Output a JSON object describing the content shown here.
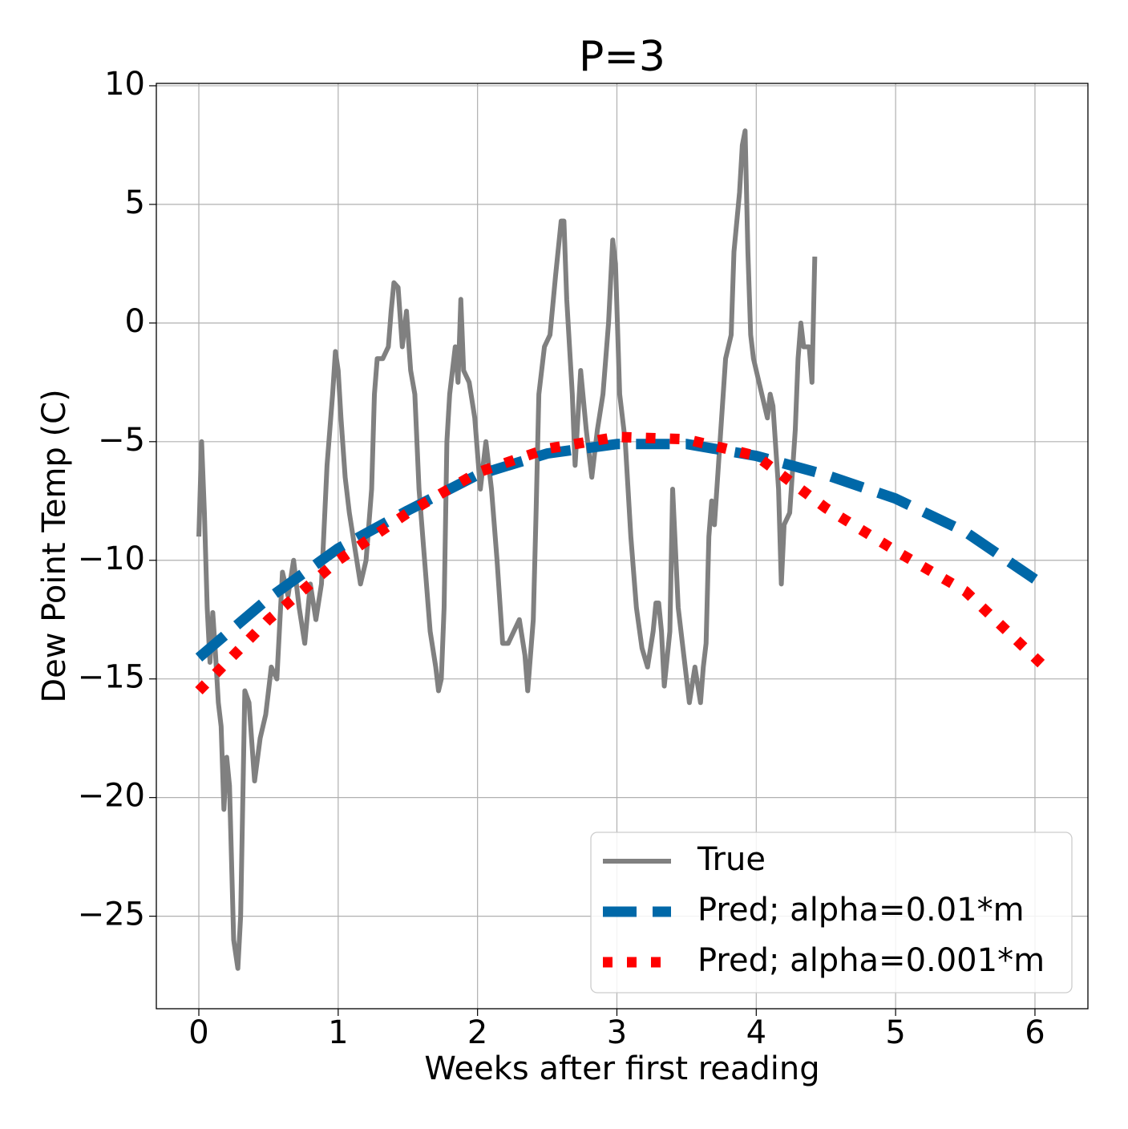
{
  "chart_data": {
    "type": "line",
    "title": "P=3",
    "xlabel": "Weeks after first reading",
    "ylabel": "Dew Point Temp (C)",
    "xlim": [
      -0.305,
      6.38
    ],
    "ylim": [
      -28.9,
      10.1
    ],
    "xticks": [
      0,
      1,
      2,
      3,
      4,
      5,
      6
    ],
    "yticks": [
      {
        "value": -25,
        "label": "−25"
      },
      {
        "value": -20,
        "label": "−20"
      },
      {
        "value": -15,
        "label": "−15"
      },
      {
        "value": -10,
        "label": "−10"
      },
      {
        "value": -5,
        "label": "−5"
      },
      0,
      5,
      10
    ],
    "grid": true,
    "legend": "lower right",
    "series": [
      {
        "name": "True",
        "color": "#808080",
        "linestyle": "solid",
        "x": [
          0,
          0.02,
          0.04,
          0.06,
          0.08,
          0.1,
          0.12,
          0.14,
          0.16,
          0.18,
          0.2,
          0.22,
          0.25,
          0.28,
          0.3,
          0.33,
          0.36,
          0.4,
          0.44,
          0.48,
          0.52,
          0.56,
          0.6,
          0.64,
          0.68,
          0.72,
          0.76,
          0.8,
          0.84,
          0.88,
          0.92,
          0.96,
          0.98,
          1.0,
          1.02,
          1.05,
          1.08,
          1.12,
          1.16,
          1.2,
          1.24,
          1.26,
          1.28,
          1.32,
          1.36,
          1.38,
          1.4,
          1.43,
          1.46,
          1.49,
          1.52,
          1.55,
          1.58,
          1.62,
          1.66,
          1.7,
          1.72,
          1.74,
          1.76,
          1.78,
          1.8,
          1.84,
          1.86,
          1.88,
          1.9,
          1.94,
          1.98,
          2.02,
          2.06,
          2.1,
          2.14,
          2.18,
          2.22,
          2.26,
          2.3,
          2.34,
          2.36,
          2.4,
          2.42,
          2.44,
          2.48,
          2.52,
          2.56,
          2.6,
          2.62,
          2.64,
          2.68,
          2.7,
          2.72,
          2.74,
          2.78,
          2.82,
          2.86,
          2.9,
          2.94,
          2.97,
          2.99,
          3.02,
          3.06,
          3.1,
          3.14,
          3.18,
          3.22,
          3.26,
          3.28,
          3.3,
          3.32,
          3.34,
          3.38,
          3.4,
          3.44,
          3.48,
          3.52,
          3.56,
          3.6,
          3.62,
          3.64,
          3.66,
          3.68,
          3.7,
          3.74,
          3.78,
          3.82,
          3.84,
          3.88,
          3.9,
          3.92,
          3.94,
          3.96,
          3.98,
          4.02,
          4.06,
          4.08,
          4.1,
          4.12,
          4.16,
          4.18,
          4.2,
          4.24,
          4.28,
          4.3,
          4.32,
          4.34,
          4.38,
          4.4,
          4.42
        ],
        "values": [
          -9,
          -5,
          -8,
          -12,
          -14.3,
          -12.2,
          -14,
          -16,
          -17,
          -20.5,
          -18.3,
          -19.5,
          -26,
          -27.2,
          -25,
          -15.5,
          -16,
          -19.3,
          -17.5,
          -16.5,
          -14.5,
          -15,
          -10.5,
          -11.5,
          -10,
          -12,
          -13.5,
          -11,
          -12.5,
          -11,
          -6,
          -3,
          -1.2,
          -2,
          -4,
          -6.5,
          -8,
          -9.5,
          -11,
          -10,
          -7,
          -3,
          -1.5,
          -1.5,
          -1,
          0.5,
          1.7,
          1.5,
          -1,
          0.5,
          -2,
          -3,
          -7,
          -10,
          -13,
          -14.5,
          -15.5,
          -15,
          -12,
          -5,
          -3,
          -1,
          -2.5,
          1,
          -2,
          -2.5,
          -4,
          -7,
          -5,
          -7,
          -10,
          -13.5,
          -13.5,
          -13,
          -12.5,
          -14,
          -15.5,
          -12.5,
          -8,
          -3,
          -1,
          -0.5,
          2,
          4.3,
          4.3,
          1,
          -3,
          -6,
          -4,
          -2,
          -4.5,
          -6.5,
          -4.5,
          -3,
          0,
          3.5,
          2.5,
          -3,
          -5,
          -9,
          -12,
          -13.7,
          -14.5,
          -13,
          -11.8,
          -11.8,
          -13,
          -15.3,
          -13,
          -7,
          -12,
          -14,
          -16,
          -14.5,
          -16,
          -14.5,
          -13.5,
          -9,
          -7.5,
          -8.5,
          -5,
          -1.5,
          -0.5,
          3,
          5.5,
          7.5,
          8.1,
          3,
          -0.5,
          -1.5,
          -2.5,
          -3.5,
          -4,
          -3,
          -3.5,
          -7,
          -11,
          -8.5,
          -8,
          -4.5,
          -1.5,
          0,
          -1,
          -1,
          -2.5,
          2.8
        ]
      },
      {
        "name": "Pred; alpha=0.01*m",
        "color": "#0068a8",
        "linestyle": "dashed",
        "x": [
          0,
          0.5,
          1,
          1.5,
          2,
          2.5,
          3,
          3.5,
          4,
          4.5,
          5,
          5.5,
          6
        ],
        "values": [
          -14.1,
          -11.6,
          -9.5,
          -7.9,
          -6.4,
          -5.5,
          -5.1,
          -5.1,
          -5.6,
          -6.4,
          -7.4,
          -8.8,
          -10.8
        ]
      },
      {
        "name": "Pred; alpha=0.001*m",
        "color": "#ff0000",
        "linestyle": "dotted",
        "x": [
          0,
          0.5,
          1,
          1.5,
          2,
          2.5,
          3,
          3.5,
          4,
          4.5,
          5,
          5.5,
          6.07
        ],
        "values": [
          -15.5,
          -12.5,
          -10,
          -8,
          -6.3,
          -5.3,
          -4.8,
          -4.9,
          -5.6,
          -7.8,
          -9.6,
          -11.3,
          -14.5
        ]
      }
    ]
  }
}
